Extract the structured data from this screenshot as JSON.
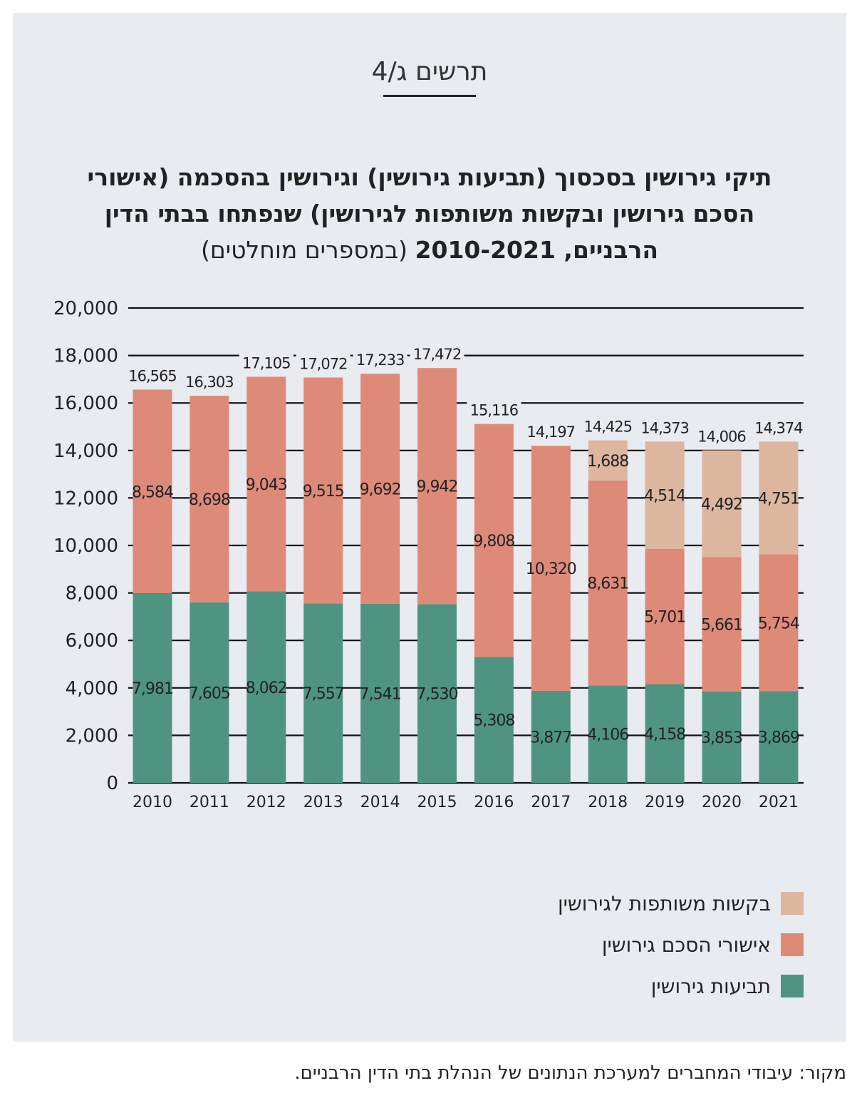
{
  "header": {
    "figure_label": "תרשים ג/4",
    "title_bold": "תיקי גירושין בסכסוך (תביעות גירושין) וגירושין בהסכמה (אישורי הסכם גירושין ובקשות משותפות לגירושין) שנפתחו בבתי הדין הרבניים, 2010-2021",
    "title_regular": " (במספרים מוחלטים)"
  },
  "source": "מקור: עיבודי המחברים למערכת הנתונים של הנהלת בתי הדין הרבניים.",
  "colors": {
    "panel_bg": "#e8ebf0",
    "green": "#4e9480",
    "salmon": "#de8a79",
    "beige": "#ddb6a0",
    "gridline": "#111111"
  },
  "chart_data": {
    "type": "bar",
    "stacked": true,
    "categories": [
      "2010",
      "2011",
      "2012",
      "2013",
      "2014",
      "2015",
      "2016",
      "2017",
      "2018",
      "2019",
      "2020",
      "2021"
    ],
    "ylim": [
      0,
      20000
    ],
    "y_ticks": [
      "0",
      "2,000",
      "4,000",
      "6,000",
      "8,000",
      "10,000",
      "12,000",
      "14,000",
      "16,000",
      "18,000",
      "20,000"
    ],
    "grid": true,
    "legend_position": "bottom-right",
    "series": [
      {
        "name": "תביעות גירושין",
        "color": "#4e9480",
        "values": [
          7981,
          7605,
          8062,
          7557,
          7541,
          7530,
          5308,
          3877,
          4106,
          4158,
          3853,
          3869
        ],
        "labels": [
          "7,981",
          "7,605",
          "8,062",
          "7,557",
          "7,541",
          "7,530",
          "5,308",
          "3,877",
          "4,106",
          "4,158",
          "3,853",
          "3,869"
        ]
      },
      {
        "name": "אישורי הסכם גירושין",
        "color": "#de8a79",
        "values": [
          8584,
          8698,
          9043,
          9515,
          9692,
          9942,
          9808,
          10320,
          8631,
          5701,
          5661,
          5754
        ],
        "labels": [
          "8,584",
          "8,698",
          "9,043",
          "9,515",
          "9,692",
          "9,942",
          "9,808",
          "10,320",
          "8,631",
          "5,701",
          "5,661",
          "5,754"
        ]
      },
      {
        "name": "בקשות משותפות לגירושין",
        "color": "#ddb6a0",
        "values": [
          0,
          0,
          0,
          0,
          0,
          0,
          0,
          0,
          1688,
          4514,
          4492,
          4751
        ],
        "labels": [
          "",
          "",
          "",
          "",
          "",
          "",
          "",
          "",
          "1,688",
          "4,514",
          "4,492",
          "4,751"
        ]
      }
    ],
    "totals": [
      16565,
      16303,
      17105,
      17072,
      17233,
      17472,
      15116,
      14197,
      14425,
      14373,
      14006,
      14374
    ],
    "total_labels": [
      "16,565",
      "16,303",
      "17,105",
      "17,072",
      "17,233",
      "17,472",
      "15,116",
      "14,197",
      "14,425",
      "14,373",
      "14,006",
      "14,374"
    ]
  },
  "legend": [
    {
      "label": "בקשות משותפות לגירושין",
      "color": "#ddb6a0"
    },
    {
      "label": "אישורי הסכם גירושין",
      "color": "#de8a79"
    },
    {
      "label": "תביעות גירושין",
      "color": "#4e9480"
    }
  ]
}
